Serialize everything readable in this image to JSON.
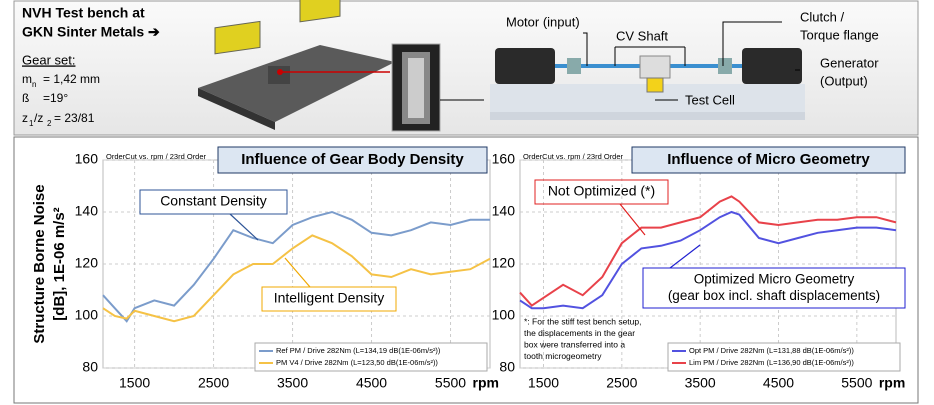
{
  "panel": {
    "title": [
      "NVH Test bench  at",
      "GKN Sinter Metals ➔"
    ],
    "gear_set_label": "Gear set:",
    "gear_set": [
      {
        "symbol": "m",
        "sub": "n",
        "value": "= 1,42 mm"
      },
      {
        "symbol": "ß",
        "value": "=19°"
      },
      {
        "symbol": "z",
        "sub": "1",
        "mid": "/z",
        "sub2": "2",
        "value": "= 23/81"
      }
    ],
    "motor": "Motor (input)",
    "cv_shaft": "CV Shaft",
    "clutch": [
      "Clutch /",
      "Torque flange"
    ],
    "generator": [
      "Generator",
      "(Output)"
    ],
    "test_cell": "Test Cell"
  },
  "chart_data": [
    {
      "type": "line",
      "title": "Influence of Gear Body Density",
      "header": "OrderCut vs. rpm / 23rd Order",
      "y_label": [
        "Structure Borne Noise",
        "[dB], 1E-06 m/s²"
      ],
      "x_label": "rpm",
      "x": [
        1100,
        1250,
        1400,
        1500,
        1750,
        2000,
        2250,
        2500,
        2750,
        3000,
        3250,
        3500,
        3750,
        4000,
        4250,
        4500,
        4750,
        5000,
        5250,
        5500,
        5750,
        6000
      ],
      "xlim": [
        1100,
        6000
      ],
      "xticks": [
        1500,
        2500,
        3500,
        4500,
        5500
      ],
      "ylim": [
        80,
        160
      ],
      "yticks": [
        80,
        100,
        120,
        140,
        160
      ],
      "grid": true,
      "series": [
        {
          "name": "Ref PM  /  Drive 282Nm (L=134,19 dB(1E-06m/s²))",
          "color": "#7b9ccb",
          "values": [
            108,
            103,
            98,
            103,
            106,
            104,
            112,
            122,
            133,
            130,
            128,
            135,
            138,
            140,
            137,
            132,
            131,
            133,
            136,
            135,
            137,
            137
          ]
        },
        {
          "name": "PM V4  /  Drive 282Nm (L=123,50 dB(1E-06m/s²))",
          "color": "#f5c246",
          "values": [
            103,
            100,
            99,
            102,
            100,
            98,
            100,
            108,
            116,
            120,
            120,
            126,
            131,
            128,
            123,
            116,
            115,
            118,
            116,
            117,
            118,
            122
          ]
        }
      ],
      "annotations": [
        {
          "lines": [
            "Constant Density"
          ],
          "color": "#2f5597"
        },
        {
          "lines": [
            "Intelligent Density"
          ],
          "color": "#f0a800"
        }
      ]
    },
    {
      "type": "line",
      "title": "Influence of Micro Geometry",
      "header": "OrderCut vs. rpm / 23rd Order",
      "x_label": "rpm",
      "x": [
        1200,
        1350,
        1500,
        1750,
        2000,
        2250,
        2500,
        2750,
        3000,
        3250,
        3500,
        3750,
        3900,
        4000,
        4250,
        4500,
        4750,
        5000,
        5250,
        5500,
        5750,
        6000
      ],
      "xlim": [
        1200,
        6000
      ],
      "xticks": [
        1500,
        2500,
        3500,
        4500,
        5500
      ],
      "ylim": [
        80,
        160
      ],
      "yticks": [
        80,
        100,
        120,
        140,
        160
      ],
      "grid": true,
      "series": [
        {
          "name": "Opt PM  /  Drive 282Nm (L=131,88 dB(1E-06m/s²))",
          "color": "#5252e0",
          "values": [
            106,
            103,
            103,
            104,
            103,
            108,
            120,
            126,
            127,
            129,
            133,
            138,
            140,
            139,
            130,
            128,
            130,
            132,
            133,
            134,
            134,
            133
          ]
        },
        {
          "name": "Lim PM  /  Drive 282Nm (L=136,90 dB(1E-06m/s²))",
          "color": "#e8424a",
          "values": [
            109,
            104,
            107,
            112,
            108,
            115,
            128,
            134,
            134,
            136,
            138,
            144,
            146,
            144,
            136,
            135,
            136,
            137,
            137,
            138,
            138,
            136
          ]
        }
      ],
      "annotations": [
        {
          "lines": [
            "Not Optimized (*)"
          ],
          "color": "#e02020"
        },
        {
          "lines": [
            "Optimized Micro Geometry",
            "(gear box incl. shaft displacements)"
          ],
          "color": "#1f1fd0"
        },
        {
          "lines": [
            "*: For the stiff test bench setup,",
            "the displacements in the gear",
            "box were transferred into a",
            "tooth microgeometry"
          ],
          "color": "#e02020"
        }
      ]
    }
  ]
}
